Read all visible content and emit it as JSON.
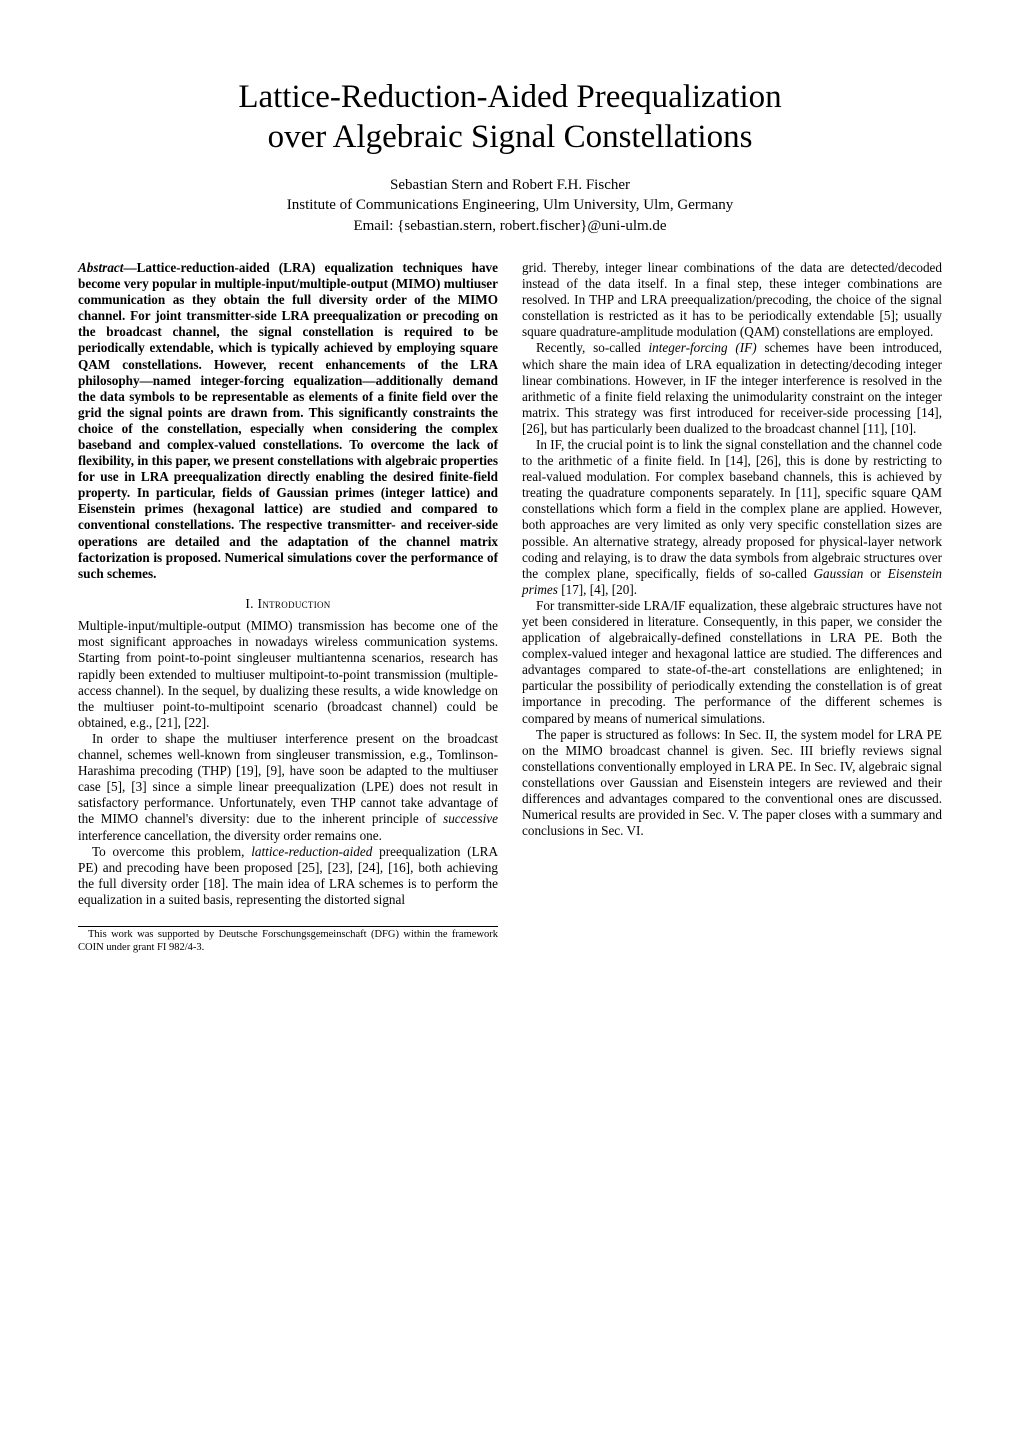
{
  "title_line1": "Lattice-Reduction-Aided Preequalization",
  "title_line2": "over Algebraic Signal Constellations",
  "authors_line": "Sebastian Stern and Robert F.H. Fischer",
  "affiliation": "Institute of Communications Engineering, Ulm University, Ulm, Germany",
  "email": "Email: {sebastian.stern, robert.fischer}@uni-ulm.de",
  "abstract_label": "Abstract",
  "abstract_body": "—Lattice-reduction-aided (LRA) equalization techniques have become very popular in multiple-input/multiple-output (MIMO) multiuser communication as they obtain the full diversity order of the MIMO channel. For joint transmitter-side LRA preequalization or precoding on the broadcast channel, the signal constellation is required to be periodically extendable, which is typically achieved by employing square QAM constellations. However, recent enhancements of the LRA philosophy—named integer-forcing equalization—additionally demand the data symbols to be representable as elements of a finite field over the grid the signal points are drawn from. This significantly constraints the choice of the constellation, especially when considering the complex baseband and complex-valued constellations. To overcome the lack of flexibility, in this paper, we present constellations with algebraic properties for use in LRA preequalization directly enabling the desired finite-field property. In particular, fields of Gaussian primes (integer lattice) and Eisenstein primes (hexagonal lattice) are studied and compared to conventional constellations. The respective transmitter- and receiver-side operations are detailed and the adaptation of the channel matrix factorization is proposed. Numerical simulations cover the performance of such schemes.",
  "section1": "I.   Introduction",
  "left_p1": "Multiple-input/multiple-output (MIMO) transmission has become one of the most significant approaches in nowadays wireless communication systems. Starting from point-to-point singleuser multiantenna scenarios, research has rapidly been extended to multiuser multipoint-to-point transmission (multiple-access channel). In the sequel, by dualizing these results, a wide knowledge on the multiuser point-to-multipoint scenario (broadcast channel) could be obtained, e.g., [21], [22].",
  "left_p2": "In order to shape the multiuser interference present on the broadcast channel, schemes well-known from singleuser transmission, e.g., Tomlinson-Harashima precoding (THP) [19], [9], have soon be adapted to the multiuser case [5], [3] since a simple linear preequalization (LPE) does not result in satisfactory performance. Unfortunately, even THP cannot take advantage of the MIMO channel's diversity: due to the inherent principle of ",
  "left_p2_em": "successive",
  "left_p2_tail": " interference cancellation, the diversity order remains one.",
  "left_p3_a": "To overcome this problem, ",
  "left_p3_em": "lattice-reduction-aided",
  "left_p3_b": " preequalization (LRA PE) and precoding have been proposed [25], [23], [24], [16], both achieving the full diversity order [18]. The main idea of LRA schemes is to perform the equalization in a suited basis, representing the distorted signal",
  "funding": "This work was supported by Deutsche Forschungsgemeinschaft (DFG) within the framework COIN under grant FI 982/4-3.",
  "right_p1": "grid. Thereby, integer linear combinations of the data are detected/decoded instead of the data itself. In a final step, these integer combinations are resolved. In THP and LRA preequalization/precoding, the choice of the signal constellation is restricted as it has to be periodically extendable [5]; usually square quadrature-amplitude modulation (QAM) constellations are employed.",
  "right_p2_a": "Recently, so-called ",
  "right_p2_em": "integer-forcing (IF)",
  "right_p2_b": " schemes have been introduced, which share the main idea of LRA equalization in detecting/decoding integer linear combinations. However, in IF the integer interference is resolved in the arithmetic of a finite field relaxing the unimodularity constraint on the integer matrix. This strategy was first introduced for receiver-side processing [14], [26], but has particularly been dualized to the broadcast channel [11], [10].",
  "right_p3_a": "In IF, the crucial point is to link the signal constellation and the channel code to the arithmetic of a finite field. In [14], [26], this is done by restricting to real-valued modulation. For complex baseband channels, this is achieved by treating the quadrature components separately. In [11], specific square QAM constellations which form a field in the complex plane are applied. However, both approaches are very limited as only very specific constellation sizes are possible. An alternative strategy, already proposed for physical-layer network coding and relaying, is to draw the data symbols from algebraic structures over the complex plane, specifically, fields of so-called ",
  "right_p3_em1": "Gaussian",
  "right_p3_mid": " or ",
  "right_p3_em2": "Eisenstein primes",
  "right_p3_b": " [17], [4], [20].",
  "right_p4": "For transmitter-side LRA/IF equalization, these algebraic structures have not yet been considered in literature. Consequently, in this paper, we consider the application of algebraically-defined constellations in LRA PE. Both the complex-valued integer and hexagonal lattice are studied. The differences and advantages compared to state-of-the-art constellations are enlightened; in particular the possibility of periodically extending the constellation is of great importance in precoding. The performance of the different schemes is compared by means of numerical simulations.",
  "right_p5": "The paper is structured as follows: In Sec. II, the system model for LRA PE on the MIMO broadcast channel is given. Sec. III briefly reviews signal constellations conventionally employed in LRA PE. In Sec. IV, algebraic signal constellations over Gaussian and Eisenstein integers are reviewed and their differences and advantages compared to the conventional ones are discussed. Numerical results are provided in Sec. V. The paper closes with a summary and conclusions in Sec. VI."
}
